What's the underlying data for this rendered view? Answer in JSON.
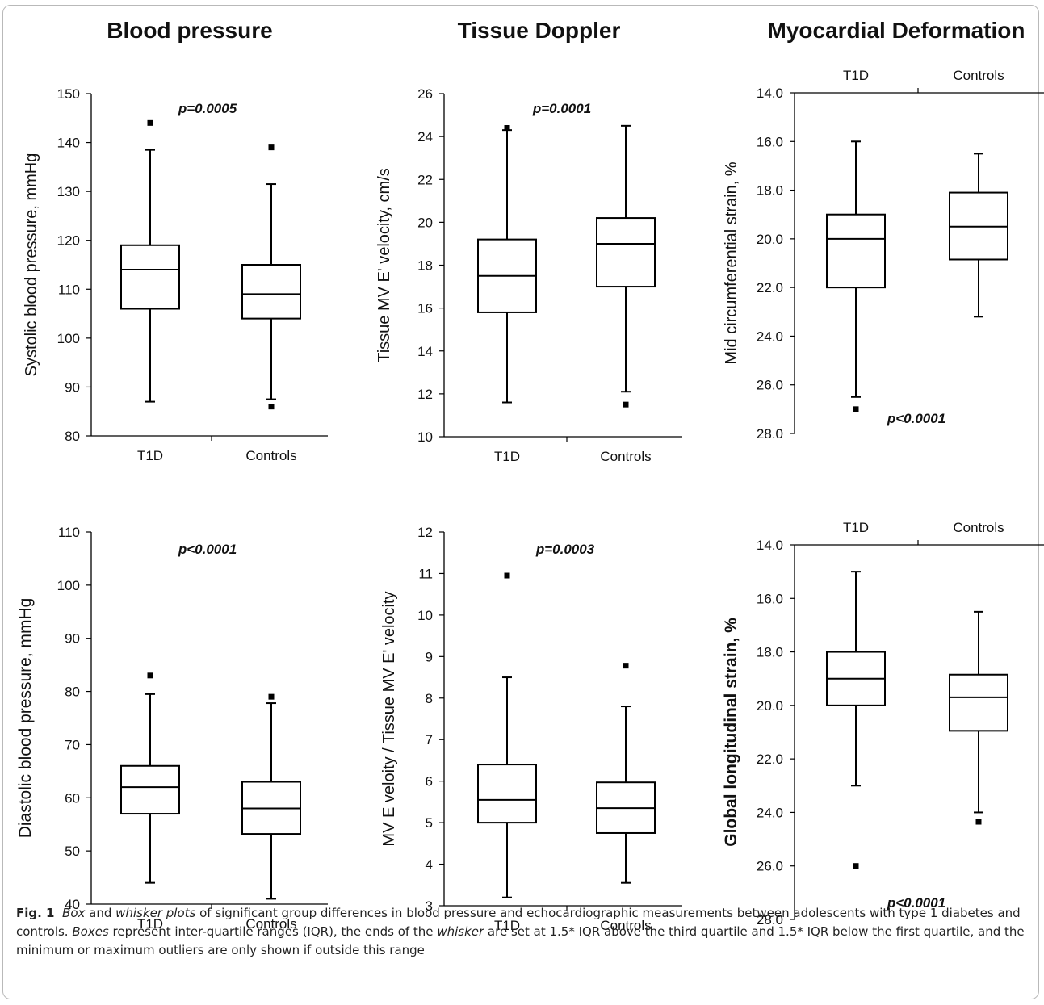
{
  "column_titles": [
    "Blood pressure",
    "Tissue Doppler",
    "Myocardial Deformation"
  ],
  "caption": {
    "label": "Fig. 1",
    "segments": [
      {
        "t": "Box",
        "i": true
      },
      {
        "t": " and ",
        "i": false
      },
      {
        "t": "whisker plots",
        "i": true
      },
      {
        "t": " of significant group differences in blood pressure and echocardiographic measurements between adolescents with type 1 diabetes and controls. ",
        "i": false
      },
      {
        "t": "Boxes",
        "i": true
      },
      {
        "t": " represent inter-quartile ranges (IQR), the ends of the ",
        "i": false
      },
      {
        "t": "whisker",
        "i": true
      },
      {
        "t": " are set at 1.5* IQR above the third quartile and 1.5* IQR below the first quartile, and the minimum or maximum outliers are only shown if outside this range",
        "i": false
      }
    ]
  },
  "chart_data": [
    {
      "type": "box",
      "ylabel": "Systolic blood pressure, mmHg",
      "ylim": [
        80,
        150
      ],
      "yticks": [
        "80",
        "90",
        "100",
        "110",
        "120",
        "130",
        "140",
        "150"
      ],
      "categories": [
        "T1D",
        "Controls"
      ],
      "annotation": "p=0.0005",
      "reversed": false,
      "boxes": [
        {
          "group": "T1D",
          "whisker_low": 87,
          "q1": 106,
          "median": 114,
          "q3": 119,
          "whisker_high": 138.5,
          "outliers": [
            144
          ]
        },
        {
          "group": "Controls",
          "whisker_low": 87.5,
          "q1": 104,
          "median": 109,
          "q3": 115,
          "whisker_high": 131.5,
          "outliers": [
            139,
            86
          ]
        }
      ]
    },
    {
      "type": "box",
      "ylabel": "Tissue MV E' velocity, cm/s",
      "ylim": [
        10,
        26
      ],
      "yticks": [
        "10",
        "12",
        "14",
        "16",
        "18",
        "20",
        "22",
        "24",
        "26"
      ],
      "categories": [
        "T1D",
        "Controls"
      ],
      "annotation": "p=0.0001",
      "reversed": false,
      "boxes": [
        {
          "group": "T1D",
          "whisker_low": 11.6,
          "q1": 15.8,
          "median": 17.5,
          "q3": 19.2,
          "whisker_high": 24.3,
          "outliers": [
            24.4
          ]
        },
        {
          "group": "Controls",
          "whisker_low": 12.1,
          "q1": 17.0,
          "median": 19.0,
          "q3": 20.2,
          "whisker_high": 24.5,
          "outliers": [
            11.5
          ]
        }
      ]
    },
    {
      "type": "box",
      "ylabel": "Mid circumferential strain, %",
      "ylim": [
        14,
        28
      ],
      "yticks": [
        "14.0",
        "16.0",
        "18.0",
        "20.0",
        "22.0",
        "24.0",
        "26.0",
        "28.0"
      ],
      "categories": [
        "T1D",
        "Controls"
      ],
      "annotation": "p<0.0001",
      "reversed": true,
      "boxes": [
        {
          "group": "T1D",
          "whisker_low": 16.0,
          "q1": 19.0,
          "median": 20.0,
          "q3": 22.0,
          "whisker_high": 26.5,
          "outliers": [
            27.0
          ]
        },
        {
          "group": "Controls",
          "whisker_low": 16.5,
          "q1": 18.1,
          "median": 19.5,
          "q3": 20.85,
          "whisker_high": 23.2,
          "outliers": []
        }
      ]
    },
    {
      "type": "box",
      "ylabel": "Diastolic blood pressure, mmHg",
      "ylim": [
        40,
        110
      ],
      "yticks": [
        "40",
        "50",
        "60",
        "70",
        "80",
        "90",
        "100",
        "110"
      ],
      "categories": [
        "T1D",
        "Controls"
      ],
      "annotation": "p<0.0001",
      "reversed": false,
      "boxes": [
        {
          "group": "T1D",
          "whisker_low": 44,
          "q1": 57,
          "median": 62,
          "q3": 66,
          "whisker_high": 79.5,
          "outliers": [
            83
          ]
        },
        {
          "group": "Controls",
          "whisker_low": 41,
          "q1": 53.2,
          "median": 58,
          "q3": 63,
          "whisker_high": 77.8,
          "outliers": [
            79
          ]
        }
      ]
    },
    {
      "type": "box",
      "ylabel": "MV E veloity / Tissue MV E' velocity",
      "ylim": [
        3,
        12
      ],
      "yticks": [
        "3",
        "4",
        "5",
        "6",
        "7",
        "8",
        "9",
        "10",
        "11",
        "12"
      ],
      "categories": [
        "T1D",
        "Controls"
      ],
      "annotation": "p=0.0003",
      "reversed": false,
      "boxes": [
        {
          "group": "T1D",
          "whisker_low": 3.2,
          "q1": 5.0,
          "median": 5.55,
          "q3": 6.4,
          "whisker_high": 8.5,
          "outliers": [
            10.95
          ]
        },
        {
          "group": "Controls",
          "whisker_low": 3.55,
          "q1": 4.75,
          "median": 5.35,
          "q3": 5.97,
          "whisker_high": 7.8,
          "outliers": [
            8.78
          ]
        }
      ]
    },
    {
      "type": "box",
      "ylabel": "Global longitudinal strain, %",
      "ylim": [
        14,
        28
      ],
      "yticks": [
        "14.0",
        "16.0",
        "18.0",
        "20.0",
        "22.0",
        "24.0",
        "26.0",
        "28.0"
      ],
      "categories": [
        "T1D",
        "Controls"
      ],
      "annotation": "p<0.0001",
      "reversed": true,
      "boxes": [
        {
          "group": "T1D",
          "whisker_low": 15.0,
          "q1": 18.0,
          "median": 19.0,
          "q3": 20.0,
          "whisker_high": 23.0,
          "outliers": [
            26.0
          ]
        },
        {
          "group": "Controls",
          "whisker_low": 16.5,
          "q1": 18.85,
          "median": 19.7,
          "q3": 20.95,
          "whisker_high": 24.0,
          "outliers": [
            24.35
          ]
        }
      ]
    }
  ]
}
